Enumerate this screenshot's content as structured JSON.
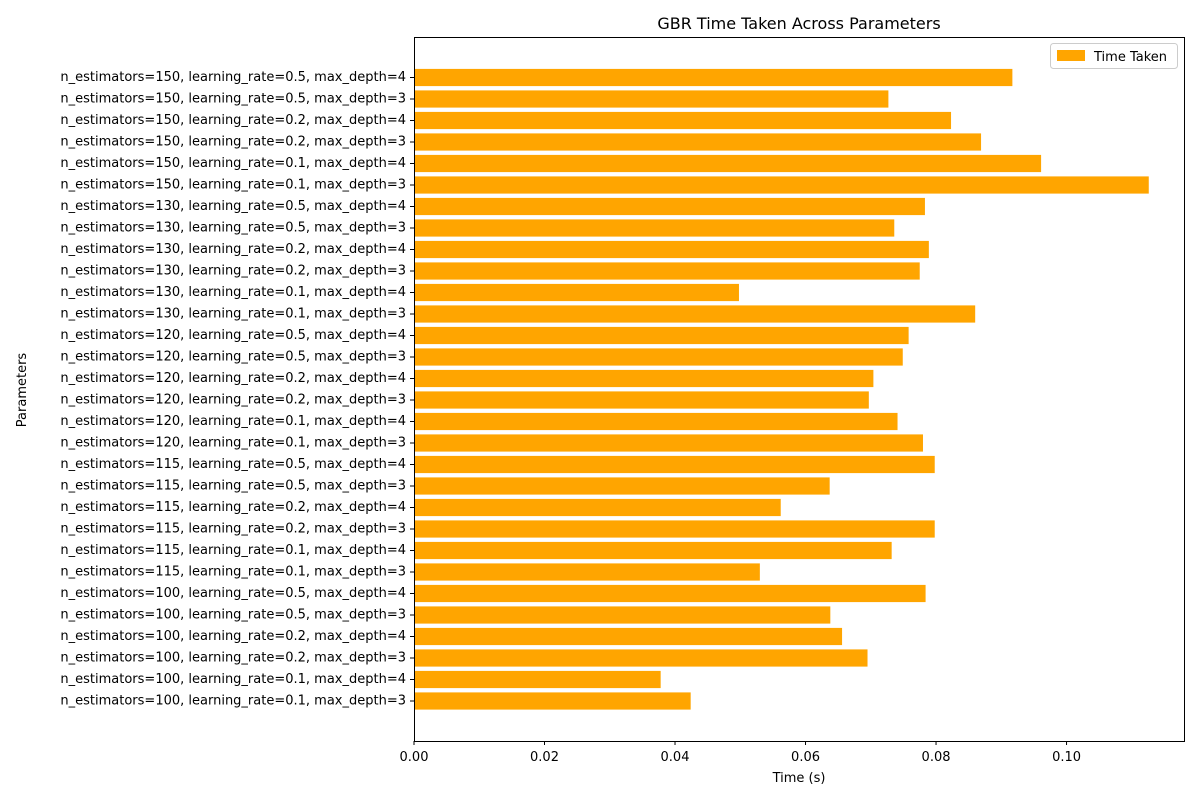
{
  "chart_data": {
    "type": "bar",
    "orientation": "horizontal",
    "title": "GBR Time Taken Across Parameters",
    "xlabel": "Time (s)",
    "ylabel": "Parameters",
    "xlim": [
      0,
      0.118
    ],
    "xticks": [
      0.0,
      0.02,
      0.04,
      0.06,
      0.08,
      0.1
    ],
    "xtick_labels": [
      "0.00",
      "0.02",
      "0.04",
      "0.06",
      "0.08",
      "0.10"
    ],
    "grid": false,
    "legend": {
      "position": "top-right"
    },
    "categories": [
      "n_estimators=100, learning_rate=0.1, max_depth=3",
      "n_estimators=100, learning_rate=0.1, max_depth=4",
      "n_estimators=100, learning_rate=0.2, max_depth=3",
      "n_estimators=100, learning_rate=0.2, max_depth=4",
      "n_estimators=100, learning_rate=0.5, max_depth=3",
      "n_estimators=100, learning_rate=0.5, max_depth=4",
      "n_estimators=115, learning_rate=0.1, max_depth=3",
      "n_estimators=115, learning_rate=0.1, max_depth=4",
      "n_estimators=115, learning_rate=0.2, max_depth=3",
      "n_estimators=115, learning_rate=0.2, max_depth=4",
      "n_estimators=115, learning_rate=0.5, max_depth=3",
      "n_estimators=115, learning_rate=0.5, max_depth=4",
      "n_estimators=120, learning_rate=0.1, max_depth=3",
      "n_estimators=120, learning_rate=0.1, max_depth=4",
      "n_estimators=120, learning_rate=0.2, max_depth=3",
      "n_estimators=120, learning_rate=0.2, max_depth=4",
      "n_estimators=120, learning_rate=0.5, max_depth=3",
      "n_estimators=120, learning_rate=0.5, max_depth=4",
      "n_estimators=130, learning_rate=0.1, max_depth=3",
      "n_estimators=130, learning_rate=0.1, max_depth=4",
      "n_estimators=130, learning_rate=0.2, max_depth=3",
      "n_estimators=130, learning_rate=0.2, max_depth=4",
      "n_estimators=130, learning_rate=0.5, max_depth=3",
      "n_estimators=130, learning_rate=0.5, max_depth=4",
      "n_estimators=150, learning_rate=0.1, max_depth=3",
      "n_estimators=150, learning_rate=0.1, max_depth=4",
      "n_estimators=150, learning_rate=0.2, max_depth=3",
      "n_estimators=150, learning_rate=0.2, max_depth=4",
      "n_estimators=150, learning_rate=0.5, max_depth=3",
      "n_estimators=150, learning_rate=0.5, max_depth=4"
    ],
    "series": [
      {
        "name": "Time Taken",
        "color": "#FFA500",
        "values": [
          0.0424,
          0.0378,
          0.0695,
          0.0656,
          0.0638,
          0.0784,
          0.053,
          0.0732,
          0.0798,
          0.0562,
          0.0637,
          0.0798,
          0.078,
          0.0741,
          0.0697,
          0.0704,
          0.0749,
          0.0758,
          0.086,
          0.0498,
          0.0775,
          0.0789,
          0.0736,
          0.0783,
          0.1126,
          0.0961,
          0.0869,
          0.0823,
          0.0727,
          0.0917
        ]
      }
    ]
  }
}
